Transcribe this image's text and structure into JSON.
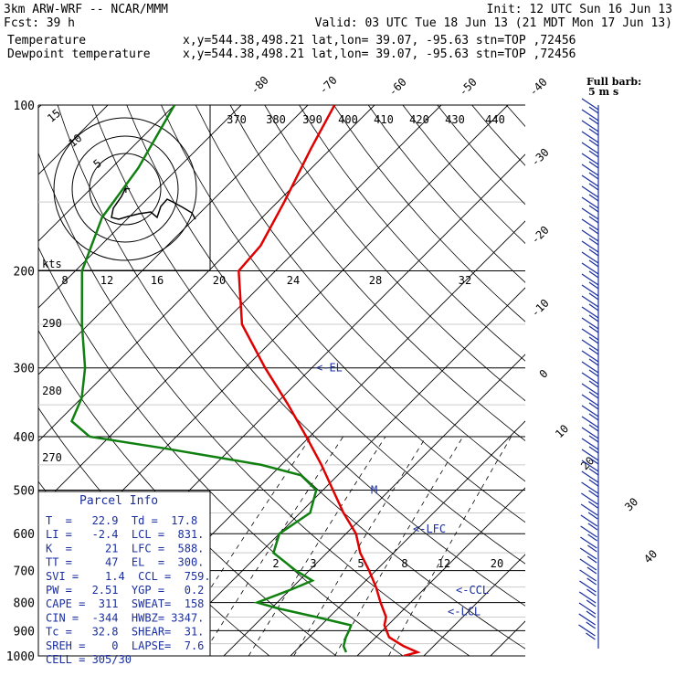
{
  "header": {
    "model": "3km ARW-WRF -- NCAR/MMM",
    "init": "Init: 12 UTC Sun 16 Jun 13",
    "fcst_label": "Fcst:",
    "fcst_value": "39 h",
    "valid": "Valid: 03 UTC Tue 18 Jun 13 (21 MDT Mon 17 Jun 13)",
    "temp_label": "Temperature",
    "dew_label": "Dewpoint temperature",
    "point_info": "x,y=544.38,498.21    lat,lon= 39.07, -95.63   stn=TOP ,72456",
    "temp_color": "#e00000",
    "dew_color": "#108010"
  },
  "wind_legend": {
    "full_barb": "Full barb:",
    "full_barb_value": "5 m s"
  },
  "parcel_info": {
    "title": "Parcel Info",
    "rows": [
      "T  =   22.9  Td =  17.8",
      "LI =   -2.4  LCL =  831.",
      "K  =     21  LFC =  588.",
      "TT =     47  EL  =  300.",
      "SVI =    1.4  CCL =  759.",
      "PW =   2.51  YGP =   0.2",
      "CAPE =  311  SWEAT=  158",
      "CIN =  -344  HWBZ= 3347.",
      "Tc =   32.8  SHEAR=  31.",
      "SREH =    0  LAPSE=  7.6",
      "CELL = 305/30"
    ]
  },
  "chart_data": {
    "type": "line",
    "title": "",
    "ylabel": "",
    "xlabel": "",
    "pressure_levels": [
      100,
      200,
      300,
      400,
      500,
      600,
      700,
      800,
      900,
      1000
    ],
    "isotherm_labels": [
      -80,
      -70,
      -60,
      -50,
      -40,
      -30,
      -20,
      -10,
      0,
      10,
      20,
      30,
      40
    ],
    "dry_adiabat_labels": [
      270,
      280,
      290,
      370,
      380,
      390,
      400,
      410,
      420,
      430,
      440
    ],
    "mixing_ratio_labels": [
      2,
      3,
      5,
      8,
      12,
      20
    ],
    "hodograph": {
      "unit_label": "kts",
      "ring_labels": [
        15,
        10,
        5
      ],
      "speed_ticks": [
        8,
        12,
        16,
        20,
        24,
        28,
        32
      ]
    },
    "series": [
      {
        "name": "Temperature",
        "color": "#e00000",
        "points": [
          {
            "p": 1000,
            "t": 27.0
          },
          {
            "p": 985,
            "t": 28.5
          },
          {
            "p": 960,
            "t": 25.5
          },
          {
            "p": 925,
            "t": 22.0
          },
          {
            "p": 880,
            "t": 19.5
          },
          {
            "p": 850,
            "t": 18.5
          },
          {
            "p": 800,
            "t": 15.5
          },
          {
            "p": 750,
            "t": 12.5
          },
          {
            "p": 700,
            "t": 9.0
          },
          {
            "p": 650,
            "t": 5.0
          },
          {
            "p": 600,
            "t": 1.5
          },
          {
            "p": 550,
            "t": -3.5
          },
          {
            "p": 500,
            "t": -8.5
          },
          {
            "p": 450,
            "t": -14.0
          },
          {
            "p": 400,
            "t": -20.5
          },
          {
            "p": 350,
            "t": -28.0
          },
          {
            "p": 300,
            "t": -37.0
          },
          {
            "p": 250,
            "t": -47.0
          },
          {
            "p": 200,
            "t": -55.5
          },
          {
            "p": 180,
            "t": -56.0
          },
          {
            "p": 150,
            "t": -59.0
          },
          {
            "p": 120,
            "t": -63.0
          },
          {
            "p": 100,
            "t": -66.0
          }
        ]
      },
      {
        "name": "Dewpoint temperature",
        "color": "#108010",
        "points": [
          {
            "p": 985,
            "t": 17.8
          },
          {
            "p": 960,
            "t": 16.5
          },
          {
            "p": 925,
            "t": 15.5
          },
          {
            "p": 900,
            "t": 15.0
          },
          {
            "p": 880,
            "t": 14.5
          },
          {
            "p": 850,
            "t": 8.0
          },
          {
            "p": 820,
            "t": 1.0
          },
          {
            "p": 800,
            "t": -3.0
          },
          {
            "p": 760,
            "t": 0.0
          },
          {
            "p": 730,
            "t": 2.0
          },
          {
            "p": 700,
            "t": -2.0
          },
          {
            "p": 650,
            "t": -8.0
          },
          {
            "p": 600,
            "t": -10.0
          },
          {
            "p": 550,
            "t": -8.5
          },
          {
            "p": 500,
            "t": -11.0
          },
          {
            "p": 470,
            "t": -15.5
          },
          {
            "p": 450,
            "t": -23.0
          },
          {
            "p": 420,
            "t": -40.0
          },
          {
            "p": 400,
            "t": -53.0
          },
          {
            "p": 375,
            "t": -58.0
          },
          {
            "p": 340,
            "t": -60.0
          },
          {
            "p": 300,
            "t": -64.0
          },
          {
            "p": 250,
            "t": -71.0
          },
          {
            "p": 200,
            "t": -79.0
          },
          {
            "p": 160,
            "t": -84.0
          },
          {
            "p": 130,
            "t": -86.0
          },
          {
            "p": 100,
            "t": -90.0
          }
        ]
      }
    ],
    "annotations": [
      {
        "text": "<-EL",
        "p": 300
      },
      {
        "text": "M",
        "p": 500
      },
      {
        "text": "<-LFC",
        "p": 588
      },
      {
        "text": "<-CCL",
        "p": 759
      },
      {
        "text": "<-LCL",
        "p": 831
      }
    ]
  }
}
